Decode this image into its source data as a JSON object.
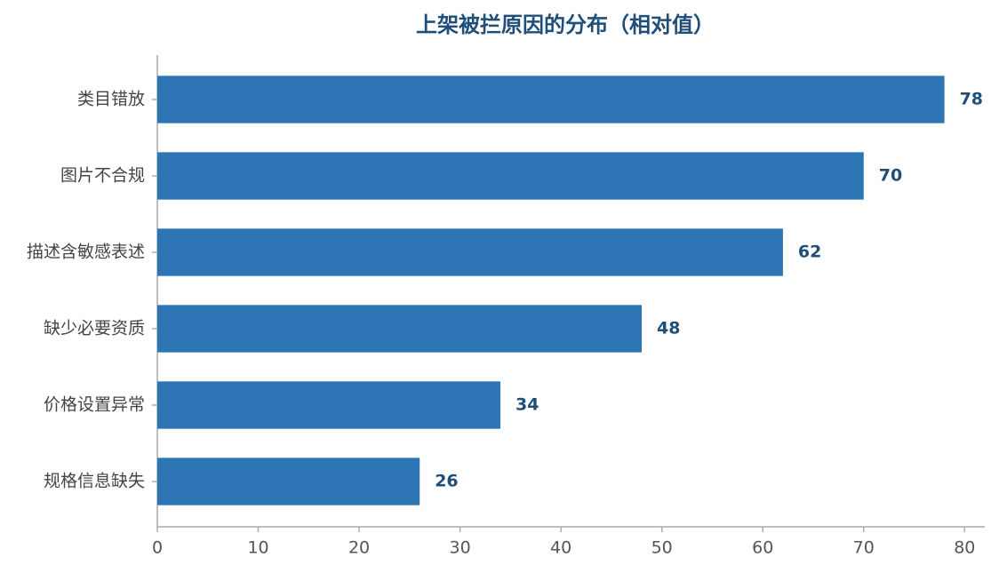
{
  "chart_data": {
    "type": "hbar",
    "title": "上架被拦原因的分布（相对值）",
    "categories": [
      "类目错放",
      "图片不合规",
      "描述含敏感表述",
      "缺少必要资质",
      "价格设置异常",
      "规格信息缺失"
    ],
    "values": [
      78,
      70,
      62,
      48,
      34,
      26
    ],
    "color": "#2e75b6",
    "xlim": [
      0,
      82
    ],
    "xticks": [
      0,
      10,
      20,
      30,
      40,
      50,
      60,
      70,
      80
    ],
    "grid": false
  }
}
